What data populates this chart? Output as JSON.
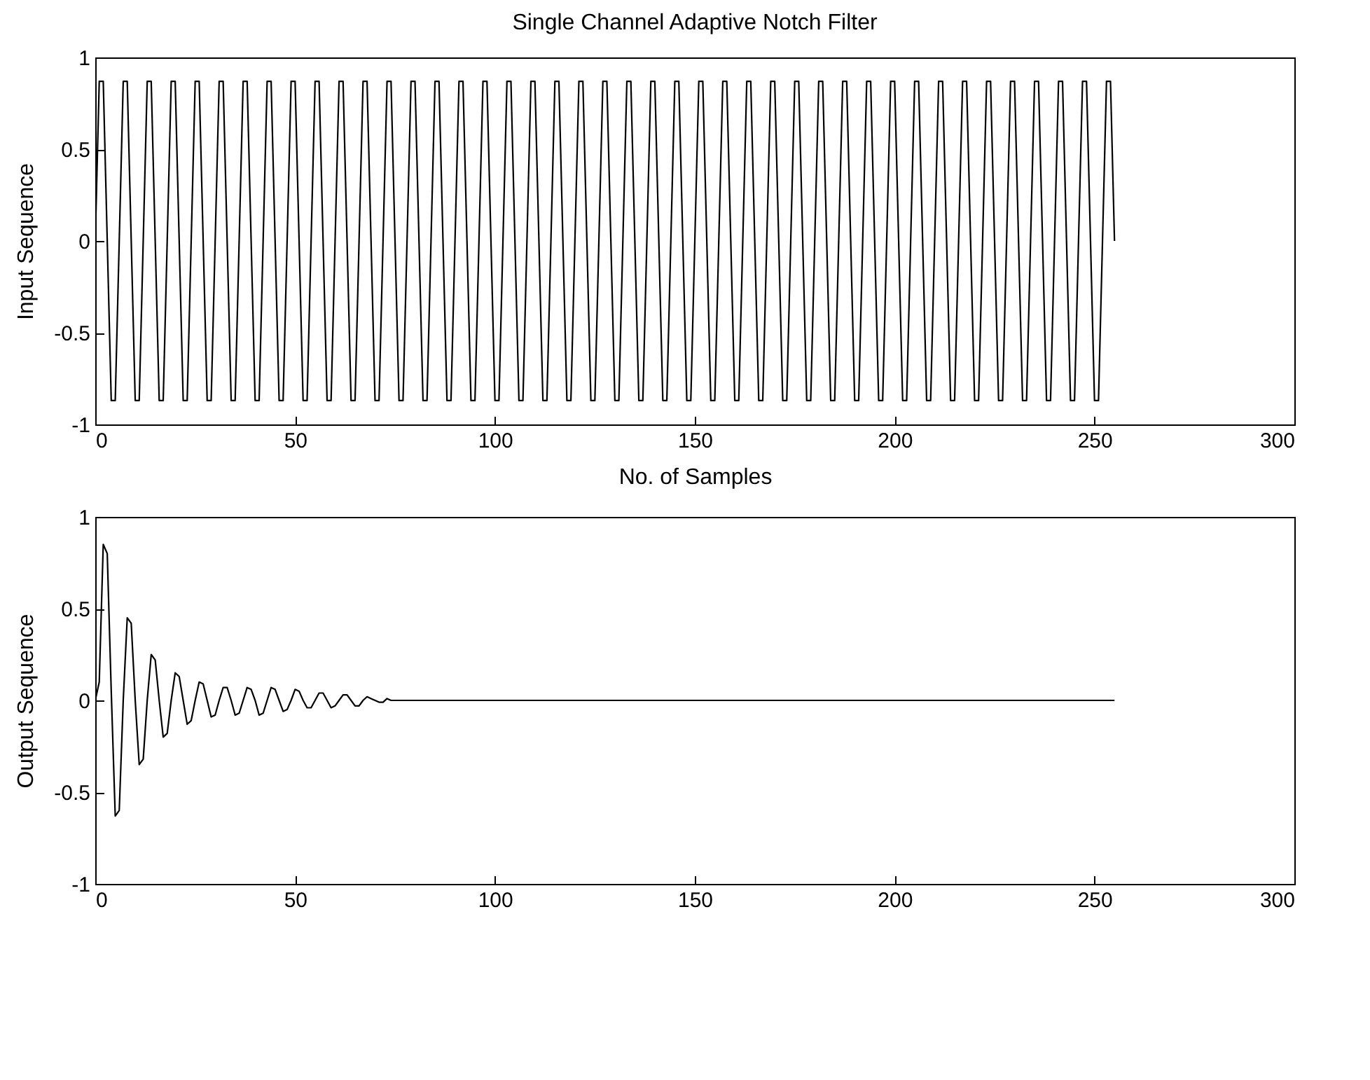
{
  "chart_data": [
    {
      "type": "line",
      "title": "Single Channel Adaptive Notch Filter",
      "xlabel": "No. of Samples",
      "ylabel": "Input Sequence",
      "xlim": [
        0,
        300
      ],
      "xticks": [
        0,
        50,
        100,
        150,
        200,
        250,
        300
      ],
      "ylim": [
        -1,
        1
      ],
      "yticks": [
        -1,
        -0.5,
        0,
        0.5,
        1
      ],
      "series": [
        {
          "color": "#000000",
          "x": [
            0,
            1,
            2,
            3,
            4,
            5,
            6,
            7,
            8,
            9,
            10,
            11,
            12,
            13,
            14,
            15,
            16,
            17,
            18,
            19,
            20,
            21,
            22,
            23,
            24,
            25,
            26,
            27,
            28,
            29,
            30,
            31,
            32,
            33,
            34,
            35,
            36,
            37,
            38,
            39,
            40,
            41,
            42,
            43,
            44,
            45,
            46,
            47,
            48,
            49,
            50,
            51,
            52,
            53,
            54,
            55,
            56,
            57,
            58,
            59,
            60,
            61,
            62,
            63,
            64,
            65,
            66,
            67,
            68,
            69,
            70,
            71,
            72,
            73,
            74,
            75,
            76,
            77,
            78,
            79,
            80,
            81,
            82,
            83,
            84,
            85,
            86,
            87,
            88,
            89,
            90,
            91,
            92,
            93,
            94,
            95,
            96,
            97,
            98,
            99,
            100,
            101,
            102,
            103,
            104,
            105,
            106,
            107,
            108,
            109,
            110,
            111,
            112,
            113,
            114,
            115,
            116,
            117,
            118,
            119,
            120,
            121,
            122,
            123,
            124,
            125,
            126,
            127,
            128,
            129,
            130,
            131,
            132,
            133,
            134,
            135,
            136,
            137,
            138,
            139,
            140,
            141,
            142,
            143,
            144,
            145,
            146,
            147,
            148,
            149,
            150,
            151,
            152,
            153,
            154,
            155,
            156,
            157,
            158,
            159,
            160,
            161,
            162,
            163,
            164,
            165,
            166,
            167,
            168,
            169,
            170,
            171,
            172,
            173,
            174,
            175,
            176,
            177,
            178,
            179,
            180,
            181,
            182,
            183,
            184,
            185,
            186,
            187,
            188,
            189,
            190,
            191,
            192,
            193,
            194,
            195,
            196,
            197,
            198,
            199,
            200,
            201,
            202,
            203,
            204,
            205,
            206,
            207,
            208,
            209,
            210,
            211,
            212,
            213,
            214,
            215,
            216,
            217,
            218,
            219,
            220,
            221,
            222,
            223,
            224,
            225,
            226,
            227,
            228,
            229,
            230,
            231,
            232,
            233,
            234,
            235,
            236,
            237,
            238,
            239,
            240,
            241,
            242,
            243,
            244,
            245,
            246,
            247,
            248,
            249,
            250,
            251,
            252,
            253,
            254,
            255
          ],
          "values": [
            0,
            0.87,
            0.87,
            0,
            -0.87,
            -0.87,
            0,
            0.87,
            0.87,
            0,
            -0.87,
            -0.87,
            0,
            0.87,
            0.87,
            0,
            -0.87,
            -0.87,
            0,
            0.87,
            0.87,
            0,
            -0.87,
            -0.87,
            0,
            0.87,
            0.87,
            0,
            -0.87,
            -0.87,
            0,
            0.87,
            0.87,
            0,
            -0.87,
            -0.87,
            0,
            0.87,
            0.87,
            0,
            -0.87,
            -0.87,
            0,
            0.87,
            0.87,
            0,
            -0.87,
            -0.87,
            0,
            0.87,
            0.87,
            0,
            -0.87,
            -0.87,
            0,
            0.87,
            0.87,
            0,
            -0.87,
            -0.87,
            0,
            0.87,
            0.87,
            0,
            -0.87,
            -0.87,
            0,
            0.87,
            0.87,
            0,
            -0.87,
            -0.87,
            0,
            0.87,
            0.87,
            0,
            -0.87,
            -0.87,
            0,
            0.87,
            0.87,
            0,
            -0.87,
            -0.87,
            0,
            0.87,
            0.87,
            0,
            -0.87,
            -0.87,
            0,
            0.87,
            0.87,
            0,
            -0.87,
            -0.87,
            0,
            0.87,
            0.87,
            0,
            -0.87,
            -0.87,
            0,
            0.87,
            0.87,
            0,
            -0.87,
            -0.87,
            0,
            0.87,
            0.87,
            0,
            -0.87,
            -0.87,
            0,
            0.87,
            0.87,
            0,
            -0.87,
            -0.87,
            0,
            0.87,
            0.87,
            0,
            -0.87,
            -0.87,
            0,
            0.87,
            0.87,
            0,
            -0.87,
            -0.87,
            0,
            0.87,
            0.87,
            0,
            -0.87,
            -0.87,
            0,
            0.87,
            0.87,
            0,
            -0.87,
            -0.87,
            0,
            0.87,
            0.87,
            0,
            -0.87,
            -0.87,
            0,
            0.87,
            0.87,
            0,
            -0.87,
            -0.87,
            0,
            0.87,
            0.87,
            0,
            -0.87,
            -0.87,
            0,
            0.87,
            0.87,
            0,
            -0.87,
            -0.87,
            0,
            0.87,
            0.87,
            0,
            -0.87,
            -0.87,
            0,
            0.87,
            0.87,
            0,
            -0.87,
            -0.87,
            0,
            0.87,
            0.87,
            0,
            -0.87,
            -0.87,
            0,
            0.87,
            0.87,
            0,
            -0.87,
            -0.87,
            0,
            0.87,
            0.87,
            0,
            -0.87,
            -0.87,
            0,
            0.87,
            0.87,
            0,
            -0.87,
            -0.87,
            0,
            0.87,
            0.87,
            0,
            -0.87,
            -0.87,
            0,
            0.87,
            0.87,
            0,
            -0.87,
            -0.87,
            0,
            0.87,
            0.87,
            0,
            -0.87,
            -0.87,
            0,
            0.87,
            0.87,
            0,
            -0.87,
            -0.87,
            0,
            0.87,
            0.87,
            0,
            -0.87,
            -0.87,
            0,
            0.87,
            0.87,
            0,
            -0.87,
            -0.87,
            0,
            0.87,
            0.87,
            0,
            -0.87,
            -0.87,
            0,
            0.87,
            0.87,
            0,
            -0.87,
            -0.87,
            0,
            0.87,
            0.87,
            0
          ]
        }
      ]
    },
    {
      "type": "line",
      "ylabel": "Output Sequence",
      "xlim": [
        0,
        300
      ],
      "xticks": [
        0,
        50,
        100,
        150,
        200,
        250,
        300
      ],
      "ylim": [
        -1,
        1
      ],
      "yticks": [
        -1,
        -0.5,
        0,
        0.5,
        1
      ],
      "series": [
        {
          "color": "#000000",
          "x": [
            0,
            1,
            2,
            3,
            4,
            5,
            6,
            7,
            8,
            9,
            10,
            11,
            12,
            13,
            14,
            15,
            16,
            17,
            18,
            19,
            20,
            21,
            22,
            23,
            24,
            25,
            26,
            27,
            28,
            29,
            30,
            31,
            32,
            33,
            34,
            35,
            36,
            37,
            38,
            39,
            40,
            41,
            42,
            43,
            44,
            45,
            46,
            47,
            48,
            49,
            50,
            51,
            52,
            53,
            54,
            55,
            56,
            57,
            58,
            59,
            60,
            61,
            62,
            63,
            64,
            65,
            66,
            67,
            68,
            69,
            70,
            71,
            72,
            73,
            74,
            255
          ],
          "values": [
            0,
            0.1,
            0.85,
            0.8,
            0.05,
            -0.63,
            -0.6,
            0,
            0.45,
            0.42,
            0,
            -0.35,
            -0.32,
            0,
            0.25,
            0.22,
            0,
            -0.2,
            -0.18,
            0,
            0.15,
            0.13,
            0,
            -0.13,
            -0.11,
            0,
            0.1,
            0.09,
            0,
            -0.09,
            -0.08,
            0,
            0.07,
            0.07,
            0,
            -0.08,
            -0.07,
            0,
            0.07,
            0.06,
            0,
            -0.08,
            -0.07,
            0,
            0.07,
            0.06,
            0,
            -0.06,
            -0.05,
            0,
            0.06,
            0.05,
            0,
            -0.04,
            -0.04,
            0,
            0.04,
            0.04,
            0,
            -0.04,
            -0.03,
            0,
            0.03,
            0.03,
            0,
            -0.03,
            -0.03,
            0,
            0.02,
            0.01,
            0,
            -0.01,
            -0.01,
            0.01,
            0,
            0
          ]
        }
      ]
    }
  ]
}
